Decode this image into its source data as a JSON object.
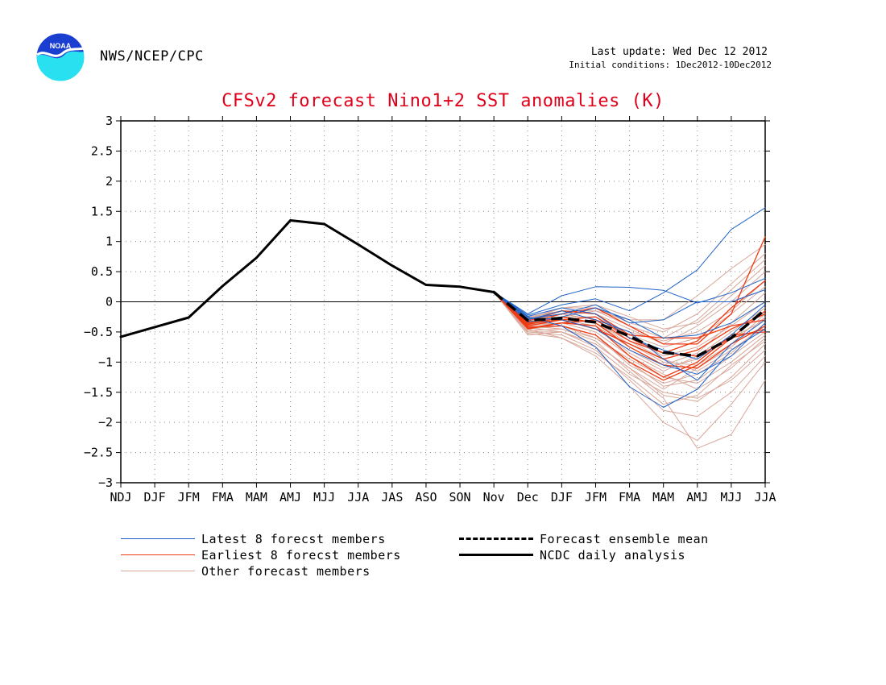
{
  "header": {
    "org": "NWS/NCEP/CPC",
    "last_update": "Last update: Wed Dec 12 2012",
    "initial_conditions": "Initial conditions: 1Dec2012-10Dec2012",
    "logo_text": "NOAA"
  },
  "colors": {
    "title": "#e0001a",
    "latest": "#1f63c8",
    "earliest": "#ee3a12",
    "other": "#d8a79a",
    "analysis": "#000000",
    "mean": "#000000"
  },
  "chart_data": {
    "type": "line",
    "title": "CFSv2 forecast Nino1+2 SST anomalies (K)",
    "xlabel": "",
    "ylabel": "",
    "categories": [
      "NDJ",
      "DJF",
      "JFM",
      "FMA",
      "MAM",
      "AMJ",
      "MJJ",
      "JJA",
      "JAS",
      "ASO",
      "SON",
      "Nov",
      "Dec",
      "DJF",
      "JFM",
      "FMA",
      "MAM",
      "AMJ",
      "MJJ",
      "JJA"
    ],
    "ylim": [
      -3,
      3
    ],
    "yticks": [
      "3",
      "2.5",
      "2",
      "1.5",
      "1",
      "0.5",
      "0",
      "−0.5",
      "−1",
      "−1.5",
      "−2",
      "−2.5",
      "−3"
    ],
    "grid": true,
    "zero_line": true,
    "analysis": {
      "name": "NCDC daily analysis",
      "x_start": 0,
      "values": [
        -0.58,
        -0.42,
        -0.26,
        0.26,
        0.73,
        1.35,
        1.29,
        0.95,
        0.6,
        0.28,
        0.25,
        0.16
      ]
    },
    "ensemble_mean": {
      "name": "Forecast ensemble mean",
      "x_start": 11,
      "values": [
        0.16,
        -0.31,
        -0.27,
        -0.34,
        -0.57,
        -0.84,
        -0.9,
        -0.6,
        -0.13
      ]
    },
    "members_x_start": 11,
    "latest_members": {
      "name": "Latest 8 forecst members",
      "series": [
        [
          0.16,
          -0.2,
          0.1,
          0.25,
          0.24,
          0.19,
          -0.02,
          0.15,
          0.39
        ],
        [
          0.16,
          -0.22,
          -0.05,
          0.05,
          -0.15,
          0.15,
          0.53,
          1.2,
          1.56
        ],
        [
          0.16,
          -0.28,
          -0.2,
          -0.05,
          -0.35,
          -0.3,
          0.0,
          0.0,
          0.2
        ],
        [
          0.16,
          -0.25,
          -0.4,
          -0.75,
          -1.41,
          -1.75,
          -1.45,
          -0.8,
          -0.45
        ],
        [
          0.16,
          -0.3,
          -0.15,
          -0.3,
          -0.5,
          -0.95,
          -1.3,
          -0.7,
          -0.3
        ],
        [
          0.16,
          -0.33,
          -0.25,
          -0.1,
          -0.3,
          -0.6,
          -0.55,
          -0.35,
          0.0
        ],
        [
          0.16,
          -0.26,
          -0.3,
          -0.45,
          -0.8,
          -1.05,
          -1.2,
          -0.9,
          -0.35
        ],
        [
          0.16,
          -0.24,
          -0.1,
          -0.2,
          -0.6,
          -0.8,
          -0.95,
          -0.55,
          -0.05
        ]
      ]
    },
    "earliest_members": {
      "name": "Earliest 8 forecst members",
      "series": [
        [
          0.16,
          -0.35,
          -0.2,
          -0.1,
          -0.4,
          -0.7,
          -0.7,
          -0.2,
          1.08
        ],
        [
          0.16,
          -0.4,
          -0.3,
          -0.25,
          -0.6,
          -0.85,
          -0.65,
          -0.1,
          0.35
        ],
        [
          0.16,
          -0.45,
          -0.35,
          -0.4,
          -0.9,
          -1.25,
          -1.0,
          -0.55,
          -0.5
        ],
        [
          0.16,
          -0.32,
          -0.15,
          -0.2,
          -0.55,
          -0.6,
          -0.6,
          -0.4,
          -0.3
        ],
        [
          0.16,
          -0.38,
          -0.25,
          -0.35,
          -0.75,
          -1.05,
          -1.1,
          -0.7,
          -0.4
        ],
        [
          0.16,
          -0.42,
          -0.4,
          -0.55,
          -1.0,
          -1.3,
          -1.05,
          -0.6,
          -0.15
        ],
        [
          0.16,
          -0.36,
          -0.3,
          -0.45,
          -0.7,
          -0.95,
          -0.8,
          -0.45,
          -0.2
        ],
        [
          0.16,
          -0.44,
          -0.35,
          -0.3,
          -0.65,
          -0.85,
          -0.9,
          -0.6,
          -0.45
        ]
      ]
    },
    "other_members": {
      "name": "Other forecast members",
      "series": [
        [
          0.16,
          -0.5,
          -0.55,
          -0.8,
          -1.3,
          -1.8,
          -1.9,
          -1.5,
          -0.9
        ],
        [
          0.16,
          -0.45,
          -0.6,
          -0.9,
          -1.4,
          -2.0,
          -2.3,
          -1.7,
          -1.0
        ],
        [
          0.16,
          -0.55,
          -0.5,
          -0.7,
          -1.1,
          -1.55,
          -1.65,
          -1.25,
          -0.7
        ],
        [
          0.16,
          -0.4,
          -0.45,
          -0.6,
          -1.0,
          -1.4,
          -1.3,
          -0.9,
          -0.5
        ],
        [
          0.16,
          -0.35,
          -0.3,
          -0.45,
          -0.8,
          -1.1,
          -0.95,
          -0.6,
          -0.3
        ],
        [
          0.16,
          -0.3,
          -0.2,
          -0.3,
          -0.6,
          -0.9,
          -0.75,
          -0.4,
          0.0
        ],
        [
          0.16,
          -0.25,
          -0.15,
          -0.2,
          -0.45,
          -0.7,
          -0.4,
          0.0,
          0.5
        ],
        [
          0.16,
          -0.3,
          -0.1,
          -0.1,
          -0.35,
          -0.5,
          -0.2,
          0.3,
          0.8
        ],
        [
          0.16,
          -0.35,
          -0.25,
          -0.15,
          -0.3,
          -0.3,
          0.1,
          0.55,
          0.95
        ],
        [
          0.16,
          -0.4,
          -0.35,
          -0.5,
          -0.9,
          -1.2,
          -1.45,
          -1.1,
          -0.6
        ],
        [
          0.16,
          -0.48,
          -0.45,
          -0.65,
          -1.15,
          -1.6,
          -2.43,
          -2.2,
          -1.3
        ],
        [
          0.16,
          -0.42,
          -0.4,
          -0.55,
          -1.05,
          -1.35,
          -1.2,
          -0.85,
          -0.35
        ],
        [
          0.16,
          -0.38,
          -0.3,
          -0.35,
          -0.7,
          -1.0,
          -1.05,
          -0.7,
          -0.2
        ],
        [
          0.16,
          -0.33,
          -0.25,
          -0.25,
          -0.55,
          -0.75,
          -0.6,
          -0.2,
          0.25
        ],
        [
          0.16,
          -0.28,
          -0.1,
          -0.05,
          -0.25,
          -0.45,
          -0.35,
          0.1,
          0.6
        ],
        [
          0.16,
          -0.5,
          -0.5,
          -0.75,
          -1.2,
          -1.5,
          -1.6,
          -1.3,
          -0.8
        ],
        [
          0.16,
          -0.45,
          -0.4,
          -0.6,
          -0.95,
          -1.25,
          -1.35,
          -1.0,
          -0.55
        ],
        [
          0.16,
          -0.37,
          -0.35,
          -0.4,
          -0.85,
          -1.15,
          -0.9,
          -0.5,
          -0.1
        ],
        [
          0.16,
          -0.31,
          -0.2,
          -0.3,
          -0.5,
          -0.65,
          -0.5,
          -0.15,
          0.35
        ],
        [
          0.16,
          -0.27,
          -0.15,
          -0.15,
          -0.4,
          -0.6,
          -0.3,
          0.2,
          0.7
        ],
        [
          0.16,
          -0.52,
          -0.6,
          -0.85,
          -1.25,
          -1.7,
          -1.55,
          -1.05,
          -0.65
        ],
        [
          0.16,
          -0.43,
          -0.5,
          -0.7,
          -1.1,
          -1.45,
          -1.1,
          -0.75,
          -0.25
        ],
        [
          0.16,
          -0.39,
          -0.3,
          -0.4,
          -0.75,
          -1.05,
          -0.85,
          -0.35,
          0.15
        ],
        [
          0.16,
          -0.34,
          -0.28,
          -0.35,
          -0.65,
          -0.95,
          -1.15,
          -0.8,
          -0.4
        ]
      ]
    },
    "legend": {
      "placement": "bottom",
      "latest": "Latest 8 forecst members",
      "earliest": "Earliest 8 forecst members",
      "other": "Other forecast members",
      "mean": "Forecast ensemble mean",
      "analysis": "NCDC daily analysis"
    }
  }
}
